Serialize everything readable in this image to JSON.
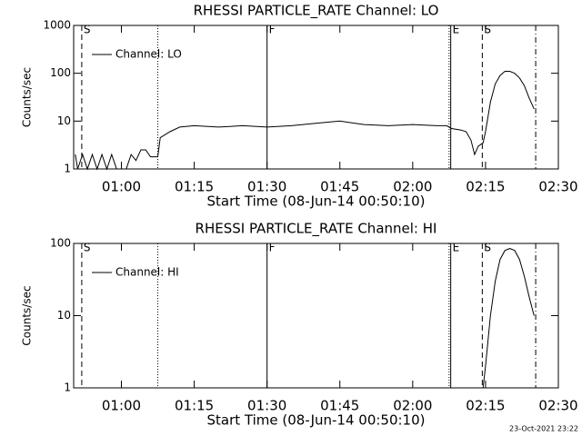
{
  "footer": "23-Oct-2021 23:22",
  "chart_data": [
    {
      "type": "line",
      "title": "RHESSI PARTICLE_RATE Channel: LO",
      "xlabel": "Start Time (08-Jun-14 00:50:10)",
      "ylabel": "Counts/sec",
      "xlim": [
        "00:50:10",
        "02:30"
      ],
      "xticks": [
        "01:00",
        "01:15",
        "01:30",
        "01:45",
        "02:00",
        "02:15",
        "02:30"
      ],
      "ylim": [
        1,
        1000
      ],
      "yticks": [
        1,
        10,
        100,
        1000
      ],
      "log_y": true,
      "legend": "upper left",
      "markers": [
        {
          "x": "00:51:50",
          "style": "dashed",
          "label": "S"
        },
        {
          "x": "01:07:30",
          "style": "dotted"
        },
        {
          "x": "01:30",
          "style": "solid",
          "label": "F"
        },
        {
          "x": "02:07:30",
          "style": "dotted"
        },
        {
          "x": "02:07:50",
          "style": "solid",
          "label": "E"
        },
        {
          "x": "02:14:20",
          "style": "dashed",
          "label": "S"
        },
        {
          "x": "02:25:20",
          "style": "dashdot"
        }
      ],
      "series": [
        {
          "name": "Channel: LO",
          "color": "#000000",
          "x": [
            "00:50:30",
            "00:51",
            "00:52",
            "00:53",
            "00:54",
            "00:55",
            "00:56",
            "00:57",
            "00:58",
            "00:59",
            "01:00",
            "01:01",
            "01:02",
            "01:03",
            "01:04",
            "01:05",
            "01:06",
            "01:07:30",
            "01:08",
            "01:10",
            "01:12",
            "01:15",
            "01:20",
            "01:25",
            "01:30",
            "01:35",
            "01:40",
            "01:45",
            "01:50",
            "01:55",
            "02:00",
            "02:05",
            "02:07",
            "02:08",
            "02:10",
            "02:11",
            "02:12",
            "02:12:45",
            "02:13:30",
            "02:14:30",
            "02:15",
            "02:16",
            "02:17",
            "02:18",
            "02:19",
            "02:20",
            "02:21",
            "02:22",
            "02:23",
            "02:24",
            "02:25"
          ],
          "values": [
            2,
            1,
            2,
            1,
            2,
            1,
            2,
            1,
            2,
            1,
            1,
            1,
            2,
            1.5,
            2.5,
            2.5,
            1.8,
            1.8,
            4.5,
            6,
            7.5,
            8,
            7.5,
            8,
            7.5,
            8,
            9,
            10,
            8.5,
            8,
            8.5,
            8,
            8,
            7,
            6.5,
            6,
            4,
            2,
            3,
            3.5,
            6,
            25,
            60,
            90,
            110,
            110,
            100,
            80,
            55,
            30,
            18
          ]
        }
      ]
    },
    {
      "type": "line",
      "title": "RHESSI PARTICLE_RATE Channel: HI",
      "xlabel": "Start Time (08-Jun-14 00:50:10)",
      "ylabel": "Counts/sec",
      "xlim": [
        "00:50:10",
        "02:30"
      ],
      "xticks": [
        "01:00",
        "01:15",
        "01:30",
        "01:45",
        "02:00",
        "02:15",
        "02:30"
      ],
      "ylim": [
        1,
        100
      ],
      "yticks": [
        1,
        10,
        100
      ],
      "log_y": true,
      "legend": "upper left",
      "markers": [
        {
          "x": "00:51:50",
          "style": "dashed",
          "label": "S"
        },
        {
          "x": "01:07:30",
          "style": "dotted"
        },
        {
          "x": "01:30",
          "style": "solid",
          "label": "F"
        },
        {
          "x": "02:07:30",
          "style": "dotted"
        },
        {
          "x": "02:07:50",
          "style": "solid",
          "label": "E"
        },
        {
          "x": "02:14:20",
          "style": "dashed",
          "label": "S"
        },
        {
          "x": "02:25:20",
          "style": "dashdot"
        }
      ],
      "series": [
        {
          "name": "Channel: HI",
          "color": "#000000",
          "x": [
            "02:14:30",
            "02:15",
            "02:16",
            "02:17",
            "02:18",
            "02:19",
            "02:20",
            "02:21",
            "02:22",
            "02:23",
            "02:24",
            "02:25"
          ],
          "values": [
            1,
            2,
            10,
            30,
            60,
            80,
            85,
            80,
            60,
            35,
            18,
            10
          ]
        }
      ]
    }
  ]
}
